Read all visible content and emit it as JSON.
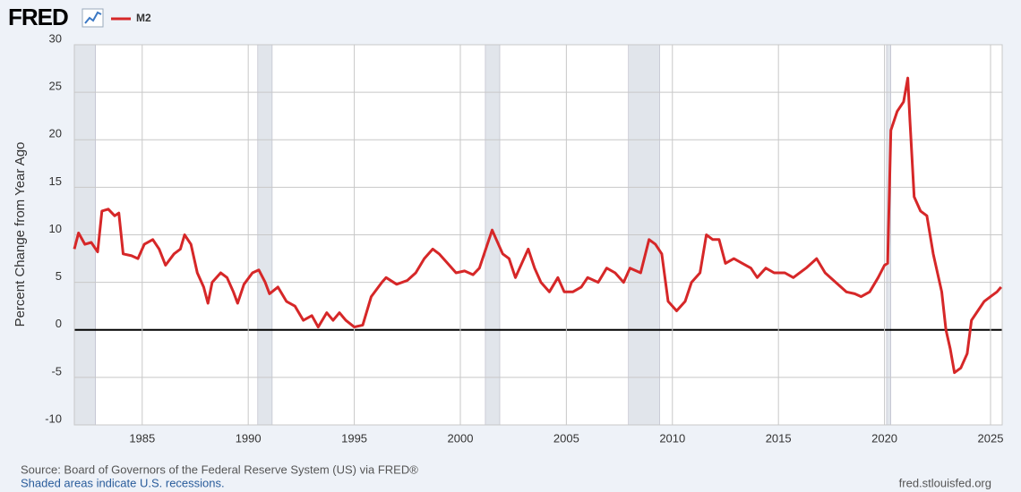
{
  "chart_data": {
    "type": "line",
    "logo": "FRED",
    "ylabel": "Percent Change from Year Ago",
    "source": "Source: Board of Governors of the Federal Reserve System (US) via FRED®",
    "note": "Shaded areas indicate U.S. recessions.",
    "site": "fred.stlouisfed.org",
    "xlim": [
      1981.8,
      2025.55
    ],
    "ylim": [
      -10,
      30
    ],
    "xticks": [
      1985,
      1990,
      1995,
      2000,
      2005,
      2010,
      2015,
      2020,
      2025
    ],
    "yticks": [
      -10,
      -5,
      0,
      5,
      10,
      15,
      20,
      25,
      30
    ],
    "grid": true,
    "recession_color": "#e1e5eb",
    "recessions": [
      [
        1981.8,
        1982.8
      ],
      [
        1990.45,
        1991.13
      ],
      [
        2001.18,
        2001.86
      ],
      [
        2007.93,
        2009.4
      ],
      [
        2020.1,
        2020.3
      ]
    ],
    "x": [
      1981.8,
      1982.0,
      1982.3,
      1982.6,
      1982.9,
      1983.1,
      1983.4,
      1983.7,
      1983.9,
      1984.1,
      1984.5,
      1984.8,
      1985.1,
      1985.5,
      1985.8,
      1986.1,
      1986.5,
      1986.8,
      1987.0,
      1987.3,
      1987.6,
      1987.9,
      1988.1,
      1988.3,
      1988.7,
      1989.0,
      1989.3,
      1989.5,
      1989.8,
      1990.2,
      1990.5,
      1990.8,
      1991.0,
      1991.4,
      1991.8,
      1992.2,
      1992.6,
      1993.0,
      1993.3,
      1993.7,
      1994.0,
      1994.3,
      1994.6,
      1995.0,
      1995.4,
      1995.8,
      1996.3,
      1996.5,
      1997.0,
      1997.5,
      1997.9,
      1998.3,
      1998.7,
      1999.0,
      1999.4,
      1999.8,
      2000.2,
      2000.6,
      2000.9,
      2001.2,
      2001.5,
      2001.7,
      2002.0,
      2002.3,
      2002.6,
      2002.9,
      2003.2,
      2003.5,
      2003.8,
      2004.2,
      2004.6,
      2004.9,
      2005.3,
      2005.7,
      2006.0,
      2006.5,
      2006.9,
      2007.3,
      2007.7,
      2008.0,
      2008.5,
      2008.9,
      2009.2,
      2009.5,
      2009.8,
      2010.2,
      2010.6,
      2010.9,
      2011.3,
      2011.6,
      2011.9,
      2012.2,
      2012.5,
      2012.9,
      2013.3,
      2013.7,
      2014.0,
      2014.4,
      2014.8,
      2015.3,
      2015.7,
      2016.3,
      2016.8,
      2017.2,
      2017.7,
      2018.2,
      2018.6,
      2018.9,
      2019.3,
      2019.7,
      2020.0,
      2020.15,
      2020.3,
      2020.6,
      2020.9,
      2021.1,
      2021.2,
      2021.4,
      2021.7,
      2022.0,
      2022.3,
      2022.7,
      2022.9,
      2023.1,
      2023.3,
      2023.6,
      2023.9,
      2024.1,
      2024.4,
      2024.7,
      2025.0,
      2025.3,
      2025.5
    ],
    "series": [
      {
        "name": "M2",
        "color": "#d62728",
        "values": [
          8.5,
          10.2,
          9.0,
          9.2,
          8.2,
          12.5,
          12.7,
          12.0,
          12.3,
          8.0,
          7.8,
          7.5,
          9.0,
          9.5,
          8.5,
          6.8,
          8.0,
          8.5,
          10.0,
          9.0,
          6.0,
          4.5,
          2.8,
          5.0,
          6.0,
          5.5,
          4.0,
          2.8,
          4.8,
          6.0,
          6.3,
          5.0,
          3.8,
          4.5,
          3.0,
          2.5,
          1.0,
          1.5,
          0.3,
          1.8,
          1.0,
          1.8,
          1.0,
          0.3,
          0.5,
          3.5,
          5.0,
          5.5,
          4.8,
          5.2,
          6.0,
          7.5,
          8.5,
          8.0,
          7.0,
          6.0,
          6.2,
          5.8,
          6.5,
          8.5,
          10.5,
          9.5,
          8.0,
          7.5,
          5.5,
          7.0,
          8.5,
          6.5,
          5.0,
          4.0,
          5.5,
          4.0,
          4.0,
          4.5,
          5.5,
          5.0,
          6.5,
          6.0,
          5.0,
          6.5,
          6.0,
          9.5,
          9.0,
          8.0,
          3.0,
          2.0,
          3.0,
          5.0,
          6.0,
          10.0,
          9.5,
          9.5,
          7.0,
          7.5,
          7.0,
          6.5,
          5.5,
          6.5,
          6.0,
          6.0,
          5.5,
          6.5,
          7.5,
          6.0,
          5.0,
          4.0,
          3.8,
          3.5,
          4.0,
          5.5,
          6.8,
          7.0,
          21.0,
          23.0,
          24.0,
          26.5,
          22.0,
          14.0,
          12.5,
          12.0,
          8.0,
          4.0,
          0.0,
          -2.0,
          -4.5,
          -4.0,
          -2.5,
          1.0,
          2.0,
          3.0,
          3.5,
          4.0,
          4.5
        ]
      }
    ]
  }
}
